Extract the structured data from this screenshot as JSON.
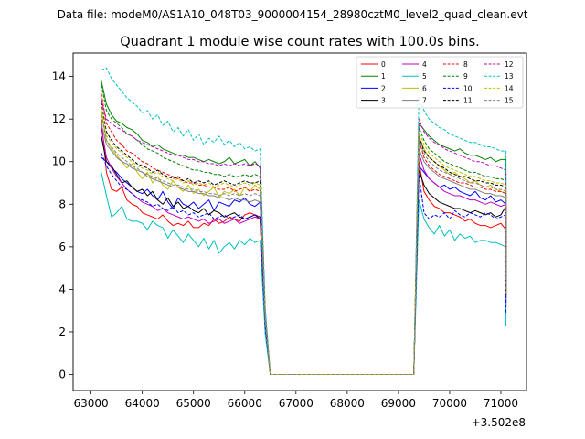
{
  "chart_data": {
    "type": "line",
    "suptitle": "Data file: modeM0/AS1A10_048T03_9000004154_28980cztM0_level2_quad_clean.evt",
    "title": "Quadrant 1 module wise count rates with 100.0s bins.",
    "xlabel": "",
    "ylabel": "",
    "x_offset_label": "+3.502e8",
    "xlim": [
      62650,
      71500
    ],
    "ylim": [
      -0.75,
      15.1
    ],
    "xticks": [
      63000,
      64000,
      65000,
      66000,
      67000,
      68000,
      69000,
      70000,
      71000
    ],
    "yticks": [
      0,
      2,
      4,
      6,
      8,
      10,
      12,
      14
    ],
    "legend_loc": "upper right",
    "gap": {
      "drop_start": 66300,
      "zero_start": 66500,
      "zero_end": 69300,
      "rise_end": 69400
    },
    "segment1_x": {
      "start": 63200,
      "end": 66300,
      "step": 100
    },
    "segment2_x": {
      "start": 69400,
      "end": 71100,
      "step": 100
    },
    "series": [
      {
        "name": "0",
        "color": "#ff0000",
        "dash": "solid",
        "seg1": [
          12.0,
          9.5,
          8.7,
          8.6,
          8.8,
          8.2,
          8.0,
          7.9,
          7.6,
          7.5,
          7.4,
          7.3,
          7.5,
          7.2,
          7.0,
          7.1,
          7.0,
          7.2,
          6.9,
          6.9,
          7.1,
          7.0,
          7.3,
          7.1,
          7.2,
          7.4,
          7.3,
          7.2,
          7.5,
          7.6,
          7.5,
          7.4
        ],
        "seg2": [
          10.0,
          8.6,
          8.2,
          7.9,
          7.8,
          7.6,
          7.6,
          7.5,
          7.4,
          7.2,
          7.3,
          7.1,
          7.0,
          7.0,
          6.9,
          7.0,
          7.1,
          6.8
        ],
        "end": 3.2
      },
      {
        "name": "1",
        "color": "#008000",
        "dash": "solid",
        "seg1": [
          13.8,
          12.7,
          12.2,
          11.9,
          11.8,
          11.6,
          11.5,
          11.3,
          11.0,
          10.9,
          10.7,
          10.8,
          10.6,
          10.5,
          10.4,
          10.3,
          10.3,
          10.2,
          10.2,
          10.1,
          10.0,
          10.1,
          10.0,
          9.9,
          10.0,
          10.2,
          9.9,
          10.0,
          10.1,
          9.8,
          10.0,
          9.7
        ],
        "seg2": [
          11.8,
          11.5,
          11.2,
          11.0,
          10.8,
          10.7,
          10.6,
          10.5,
          10.6,
          10.4,
          10.3,
          10.3,
          10.2,
          10.1,
          10.2,
          10.0,
          10.1,
          10.1
        ],
        "end": 4.0
      },
      {
        "name": "2",
        "color": "#0000ff",
        "dash": "solid",
        "seg1": [
          10.2,
          10.0,
          9.7,
          9.5,
          9.2,
          9.0,
          8.8,
          8.6,
          8.5,
          8.7,
          8.4,
          8.2,
          8.6,
          8.1,
          7.8,
          8.3,
          8.0,
          7.9,
          8.1,
          7.8,
          8.0,
          8.2,
          7.7,
          8.1,
          8.0,
          7.9,
          8.2,
          8.1,
          8.3,
          8.0,
          7.9,
          8.1
        ],
        "seg2": [
          9.8,
          9.5,
          9.2,
          9.0,
          8.8,
          8.9,
          8.7,
          8.8,
          8.6,
          8.5,
          8.4,
          8.6,
          8.3,
          8.2,
          8.4,
          8.1,
          8.2,
          8.0
        ],
        "end": 3.5
      },
      {
        "name": "3",
        "color": "#000000",
        "dash": "solid",
        "seg1": [
          11.2,
          10.0,
          9.8,
          9.4,
          9.0,
          9.1,
          8.8,
          8.6,
          8.7,
          8.4,
          8.6,
          8.2,
          8.0,
          8.3,
          7.9,
          8.1,
          7.8,
          7.9,
          7.7,
          7.6,
          7.8,
          7.5,
          7.7,
          7.6,
          7.4,
          7.5,
          7.6,
          7.4,
          7.3,
          7.4,
          7.5,
          7.3
        ],
        "seg2": [
          9.6,
          8.9,
          8.5,
          8.3,
          8.1,
          8.0,
          7.9,
          7.8,
          7.8,
          7.7,
          7.6,
          7.7,
          7.6,
          7.5,
          7.6,
          7.4,
          7.5,
          7.9
        ],
        "end": 3.2
      },
      {
        "name": "4",
        "color": "#bf00bf",
        "dash": "solid",
        "seg1": [
          11.6,
          10.2,
          9.7,
          9.3,
          9.0,
          8.7,
          8.5,
          8.3,
          8.1,
          8.0,
          7.9,
          7.7,
          7.8,
          7.6,
          7.5,
          7.4,
          7.3,
          7.4,
          7.3,
          7.2,
          7.3,
          7.1,
          7.2,
          7.3,
          7.1,
          7.2,
          7.3,
          7.1,
          7.2,
          7.3,
          7.4,
          7.3
        ],
        "seg2": [
          10.4,
          9.6,
          9.2,
          9.0,
          8.8,
          8.6,
          8.5,
          8.4,
          8.4,
          8.3,
          8.2,
          8.2,
          8.1,
          8.0,
          8.1,
          8.0,
          7.9,
          8.0
        ],
        "end": 3.4
      },
      {
        "name": "5",
        "color": "#00bfbf",
        "dash": "solid",
        "seg1": [
          9.5,
          8.4,
          7.4,
          7.6,
          7.9,
          7.3,
          7.2,
          7.2,
          7.1,
          6.8,
          7.2,
          7.0,
          6.9,
          6.4,
          6.8,
          6.5,
          6.2,
          6.6,
          6.3,
          6.0,
          6.4,
          5.9,
          6.3,
          5.7,
          6.0,
          6.2,
          5.9,
          6.3,
          6.1,
          6.4,
          6.2,
          6.3
        ],
        "seg2": [
          8.2,
          7.3,
          6.9,
          6.6,
          7.0,
          6.5,
          6.8,
          6.3,
          6.6,
          6.4,
          6.5,
          6.2,
          6.3,
          6.3,
          6.2,
          6.2,
          6.1,
          6.0
        ],
        "end": 2.3
      },
      {
        "name": "6",
        "color": "#bfbf00",
        "dash": "solid",
        "seg1": [
          12.4,
          11.0,
          10.6,
          10.3,
          10.0,
          9.7,
          9.9,
          9.5,
          9.2,
          9.5,
          9.0,
          9.3,
          8.9,
          8.7,
          9.1,
          8.8,
          8.6,
          8.9,
          8.5,
          8.7,
          8.4,
          8.6,
          8.8,
          8.3,
          8.6,
          8.5,
          8.7,
          8.4,
          8.8,
          8.6,
          8.9,
          8.7
        ],
        "seg2": [
          11.2,
          10.6,
          10.2,
          10.0,
          9.8,
          9.6,
          9.4,
          9.5,
          9.3,
          9.2,
          9.0,
          9.1,
          8.9,
          8.8,
          8.9,
          8.7,
          8.6,
          8.5
        ],
        "end": 3.9
      },
      {
        "name": "7",
        "color": "#7f7f7f",
        "dash": "solid",
        "seg1": [
          11.8,
          10.8,
          10.5,
          10.2,
          10.0,
          9.9,
          9.7,
          9.6,
          9.5,
          9.3,
          9.2,
          9.1,
          9.0,
          8.9,
          8.8,
          8.8,
          8.7,
          8.6,
          8.6,
          8.5,
          8.5,
          8.4,
          8.4,
          8.3,
          8.3,
          8.2,
          8.3,
          8.2,
          8.2,
          8.1,
          8.2,
          8.1
        ],
        "seg2": [
          10.6,
          10.0,
          9.7,
          9.5,
          9.3,
          9.2,
          9.1,
          9.0,
          8.9,
          8.8,
          8.7,
          8.7,
          8.6,
          8.5,
          8.5,
          8.4,
          8.4,
          8.3
        ],
        "end": 3.6
      },
      {
        "name": "8",
        "color": "#ff0000",
        "dash": "dashed",
        "seg1": [
          13.2,
          11.8,
          11.4,
          11.0,
          10.8,
          10.5,
          10.4,
          10.2,
          10.0,
          9.9,
          9.7,
          9.6,
          9.5,
          9.4,
          9.3,
          9.2,
          9.1,
          9.0,
          9.0,
          8.9,
          8.9,
          8.8,
          8.8,
          8.7,
          8.7,
          8.8,
          8.6,
          8.7,
          8.8,
          8.6,
          8.7,
          8.6
        ],
        "seg2": [
          11.0,
          10.2,
          9.8,
          9.6,
          9.4,
          9.3,
          9.2,
          9.1,
          9.0,
          9.0,
          8.9,
          8.8,
          8.8,
          8.7,
          8.7,
          8.6,
          8.6,
          8.5
        ],
        "end": 3.8
      },
      {
        "name": "9",
        "color": "#008000",
        "dash": "dashed",
        "seg1": [
          13.6,
          12.4,
          12.0,
          11.8,
          11.6,
          11.3,
          11.2,
          11.0,
          10.8,
          10.6,
          10.5,
          10.4,
          10.2,
          10.1,
          10.0,
          9.9,
          9.8,
          9.7,
          9.6,
          9.6,
          9.5,
          9.5,
          9.4,
          9.4,
          9.3,
          9.4,
          9.3,
          9.3,
          9.4,
          9.3,
          9.4,
          9.3
        ],
        "seg2": [
          11.6,
          11.0,
          10.6,
          10.4,
          10.2,
          10.0,
          9.9,
          9.8,
          9.7,
          9.6,
          9.5,
          9.5,
          9.4,
          9.3,
          9.3,
          9.2,
          9.2,
          9.1
        ],
        "end": 4.1
      },
      {
        "name": "10",
        "color": "#0000ff",
        "dash": "dashed",
        "seg1": [
          10.4,
          9.8,
          9.4,
          9.1,
          8.8,
          8.7,
          8.5,
          8.3,
          8.2,
          8.1,
          7.9,
          8.0,
          7.8,
          7.7,
          7.9,
          7.6,
          7.7,
          7.5,
          7.6,
          7.4,
          7.5,
          7.6,
          7.3,
          7.4,
          7.5,
          7.3,
          7.4,
          7.5,
          7.3,
          7.4,
          7.5,
          7.4
        ],
        "seg2": [
          9.4,
          7.6,
          7.3,
          7.5,
          7.4,
          7.6,
          7.3,
          7.7,
          7.5,
          7.4,
          7.6,
          7.5,
          7.4,
          7.6,
          7.5,
          7.3,
          7.4,
          7.5
        ],
        "end": 2.9
      },
      {
        "name": "11",
        "color": "#000000",
        "dash": "dashed",
        "seg1": [
          12.8,
          11.4,
          11.0,
          10.7,
          10.5,
          10.3,
          10.1,
          9.9,
          9.8,
          9.7,
          9.5,
          9.6,
          9.4,
          9.3,
          9.2,
          9.3,
          9.1,
          9.2,
          9.0,
          9.1,
          9.0,
          9.1,
          8.9,
          9.0,
          9.1,
          9.0,
          8.9,
          9.0,
          9.1,
          9.0,
          9.0,
          9.1
        ],
        "seg2": [
          11.2,
          10.5,
          10.2,
          10.0,
          9.8,
          9.7,
          9.5,
          9.4,
          9.3,
          9.3,
          9.2,
          9.1,
          9.1,
          9.0,
          9.0,
          8.9,
          8.9,
          8.8
        ],
        "end": 3.7
      },
      {
        "name": "12",
        "color": "#bf00bf",
        "dash": "dashed",
        "seg1": [
          12.9,
          12.0,
          11.8,
          11.6,
          11.5,
          11.3,
          11.2,
          11.0,
          10.9,
          10.8,
          10.7,
          10.6,
          10.5,
          10.4,
          10.3,
          10.3,
          10.2,
          10.1,
          10.1,
          10.0,
          10.0,
          9.9,
          9.9,
          9.8,
          9.9,
          9.8,
          9.9,
          9.8,
          9.9,
          9.8,
          9.9,
          9.8
        ],
        "seg2": [
          12.0,
          11.4,
          11.1,
          10.9,
          10.8,
          10.6,
          10.5,
          10.4,
          10.3,
          10.2,
          10.1,
          10.0,
          10.0,
          9.9,
          9.8,
          9.8,
          9.7,
          9.6
        ],
        "end": 4.2
      },
      {
        "name": "13",
        "color": "#00bfbf",
        "dash": "dashed",
        "seg1": [
          14.3,
          14.4,
          13.9,
          13.6,
          13.3,
          13.0,
          12.8,
          12.6,
          12.3,
          12.4,
          12.0,
          12.2,
          11.7,
          11.9,
          11.4,
          11.6,
          11.2,
          11.5,
          11.0,
          11.3,
          10.8,
          11.1,
          10.9,
          11.2,
          10.8,
          11.0,
          10.7,
          10.9,
          10.6,
          10.7,
          10.5,
          10.6
        ],
        "seg2": [
          13.0,
          12.4,
          12.0,
          11.8,
          11.6,
          11.5,
          11.3,
          11.2,
          11.1,
          11.0,
          10.9,
          10.9,
          10.8,
          10.7,
          10.7,
          10.6,
          10.5,
          10.5
        ],
        "end": 4.5
      },
      {
        "name": "14",
        "color": "#bfbf00",
        "dash": "dashed",
        "seg1": [
          12.6,
          11.2,
          10.9,
          10.6,
          10.4,
          10.2,
          10.0,
          9.8,
          9.7,
          9.6,
          9.4,
          9.5,
          9.3,
          9.2,
          9.1,
          9.2,
          9.0,
          9.1,
          8.9,
          9.0,
          8.9,
          9.0,
          8.8,
          8.9,
          9.0,
          8.9,
          8.8,
          8.9,
          9.0,
          8.9,
          9.0,
          8.9
        ],
        "seg2": [
          11.4,
          10.8,
          10.4,
          10.2,
          10.0,
          9.8,
          9.7,
          9.6,
          9.5,
          9.4,
          9.3,
          9.3,
          9.2,
          9.1,
          9.1,
          9.0,
          9.0,
          8.9
        ],
        "end": 3.8
      },
      {
        "name": "15",
        "color": "#7f7f7f",
        "dash": "dashed",
        "seg1": [
          12.2,
          11.0,
          10.7,
          10.4,
          10.2,
          10.0,
          9.8,
          9.7,
          9.5,
          9.4,
          9.3,
          9.2,
          9.1,
          9.0,
          8.9,
          8.9,
          8.8,
          8.7,
          8.7,
          8.6,
          8.6,
          8.5,
          8.5,
          8.4,
          8.5,
          8.4,
          8.5,
          8.4,
          8.5,
          8.4,
          8.5,
          8.4
        ],
        "seg2": [
          11.0,
          10.4,
          10.0,
          9.8,
          9.6,
          9.5,
          9.4,
          9.3,
          9.2,
          9.1,
          9.0,
          9.0,
          8.9,
          8.8,
          8.8,
          8.7,
          8.7,
          8.6
        ],
        "end": 3.7
      }
    ]
  }
}
